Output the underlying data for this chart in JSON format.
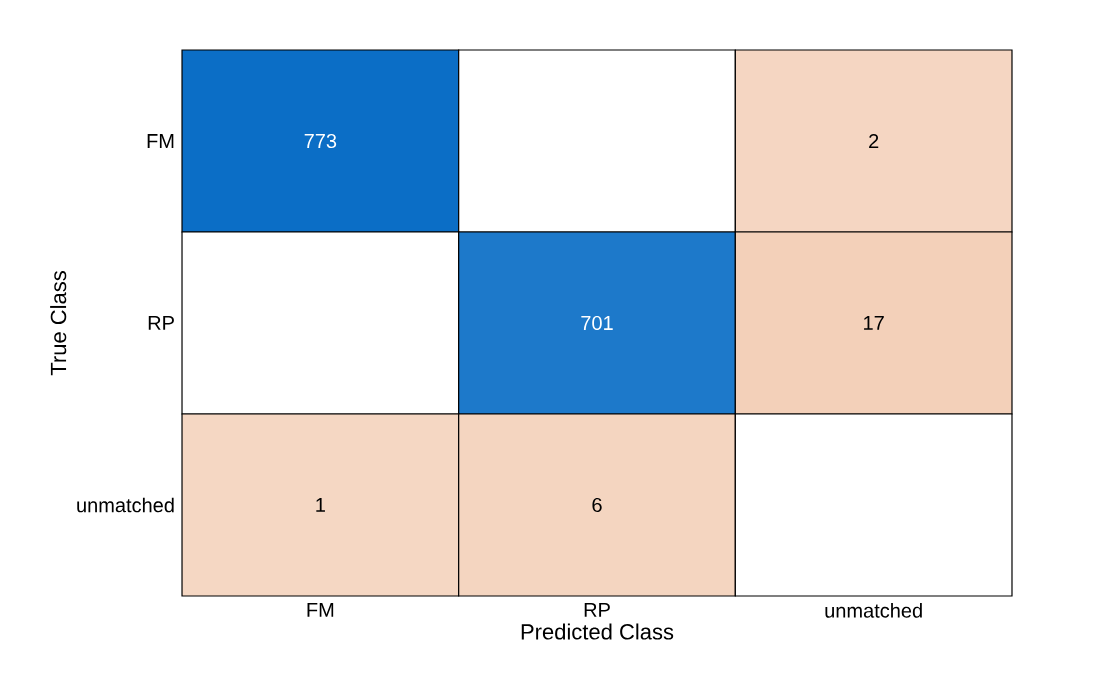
{
  "chart_data": {
    "type": "heatmap",
    "xlabel": "Predicted Class",
    "ylabel": "True Class",
    "categories": [
      "FM",
      "RP",
      "unmatched"
    ],
    "y_categories": [
      "FM",
      "RP",
      "unmatched"
    ],
    "cells": [
      [
        773,
        null,
        2
      ],
      [
        null,
        701,
        17
      ],
      [
        1,
        6,
        null
      ]
    ],
    "data_labels": true
  }
}
